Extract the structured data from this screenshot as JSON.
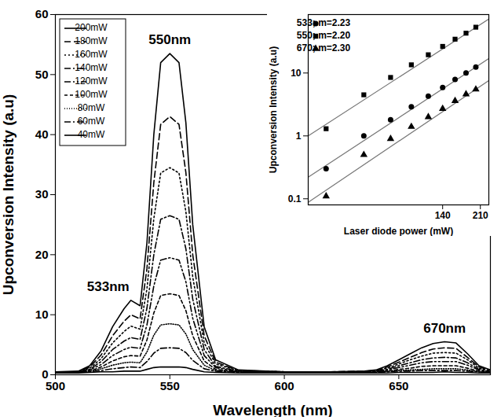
{
  "chart_data": [
    {
      "type": "line",
      "x_label": "Wavelength (nm)",
      "y_label": "Upconversion Intensity (a.u)",
      "x": [
        500,
        510,
        515,
        520,
        525,
        530,
        533,
        537,
        540,
        543,
        546,
        550,
        554,
        557,
        560,
        565,
        570,
        580,
        600,
        620,
        635,
        640,
        645,
        650,
        655,
        660,
        665,
        670,
        675,
        680,
        685,
        690
      ],
      "series": [
        {
          "name": "200mW",
          "color": "#000000",
          "line_style": "solid",
          "values": [
            0.5,
            0.6,
            1.5,
            4,
            8,
            11,
            12.4,
            11.5,
            22,
            40,
            52,
            53.5,
            52,
            42,
            25,
            8,
            2.5,
            0.8,
            0.5,
            0.5,
            0.6,
            0.8,
            1.5,
            2.5,
            3.5,
            4.5,
            5.2,
            5.5,
            5.3,
            3.5,
            1.5,
            0.8
          ]
        },
        {
          "name": "180mW",
          "color": "#000000",
          "line_style": "dashed",
          "values": [
            0.5,
            0.5,
            1.3,
            3.3,
            6.5,
            8.9,
            10,
            9.3,
            17.7,
            32,
            41.7,
            43,
            41.7,
            33.7,
            20,
            6.5,
            2.1,
            0.7,
            0.5,
            0.5,
            0.6,
            0.7,
            1.3,
            2.1,
            2.9,
            3.7,
            4.3,
            4.5,
            4.4,
            2.9,
            1.3,
            0.7
          ]
        },
        {
          "name": "160mW",
          "color": "#000000",
          "line_style": "dotted",
          "values": [
            0.5,
            0.5,
            1.1,
            2.7,
            5.3,
            7.2,
            8.1,
            7.6,
            14.3,
            26,
            33.6,
            34.5,
            33.6,
            27.2,
            16.3,
            5.3,
            1.8,
            0.7,
            0.5,
            0.5,
            0.5,
            0.7,
            1.1,
            1.8,
            2.5,
            3.1,
            3.6,
            3.7,
            3.6,
            2.5,
            1.1,
            0.6
          ]
        },
        {
          "name": "140mW",
          "color": "#000000",
          "line_style": "dashdot",
          "values": [
            0.4,
            0.5,
            0.9,
            2.2,
            4.2,
            5.6,
            6.2,
            5.9,
            11.1,
            20,
            25.9,
            26.5,
            25.9,
            21,
            12.6,
            4.2,
            1.4,
            0.6,
            0.4,
            0.4,
            0.5,
            0.6,
            0.9,
            1.5,
            2,
            2.5,
            2.8,
            2.9,
            2.8,
            2,
            0.9,
            0.5
          ]
        },
        {
          "name": "120mW",
          "color": "#000000",
          "line_style": "dashdotdot",
          "values": [
            0.4,
            0.4,
            0.8,
            1.7,
            3.2,
            4.2,
            4.6,
            4.4,
            8.3,
            14.8,
            19.1,
            19.5,
            19.1,
            15.5,
            9.4,
            3.2,
            1.2,
            0.5,
            0.4,
            0.4,
            0.4,
            0.5,
            0.8,
            1.2,
            1.6,
            2,
            2.2,
            2.2,
            2.2,
            1.6,
            0.8,
            0.5
          ]
        },
        {
          "name": "100mW",
          "color": "#000000",
          "line_style": "shortdash",
          "values": [
            0.4,
            0.4,
            0.6,
            1.3,
            2.3,
            3,
            3.2,
            3.1,
            5.8,
            10.3,
            13.2,
            13.5,
            13.2,
            10.7,
            6.5,
            2.3,
            0.9,
            0.5,
            0.4,
            0.4,
            0.4,
            0.5,
            0.6,
            0.9,
            1.1,
            1.4,
            1.5,
            1.5,
            1.5,
            1.1,
            0.6,
            0.4
          ]
        },
        {
          "name": "80mW",
          "color": "#000000",
          "line_style": "shortdot",
          "values": [
            0.4,
            0.4,
            0.6,
            1,
            1.6,
            2,
            2.1,
            2,
            3.8,
            6.6,
            8.3,
            8.5,
            8.3,
            6.8,
            4.2,
            1.6,
            0.7,
            0.5,
            0.4,
            0.4,
            0.4,
            0.5,
            0.6,
            0.7,
            0.8,
            0.9,
            1,
            1,
            1,
            0.8,
            0.5,
            0.4
          ]
        },
        {
          "name": "60mW",
          "color": "#000000",
          "line_style": "dashdot",
          "values": [
            0.4,
            0.4,
            0.5,
            0.7,
            1,
            1.2,
            1.3,
            1.2,
            2.2,
            3.6,
            4.4,
            4.5,
            4.4,
            3.7,
            2.4,
            1,
            0.6,
            0.4,
            0.4,
            0.4,
            0.4,
            0.4,
            0.5,
            0.6,
            0.6,
            0.7,
            0.7,
            0.7,
            0.7,
            0.6,
            0.5,
            0.4
          ]
        },
        {
          "name": "40mW",
          "color": "#000000",
          "line_style": "solid",
          "values": [
            0.3,
            0.3,
            0.4,
            0.5,
            0.5,
            0.6,
            0.6,
            0.6,
            0.9,
            1.2,
            1.3,
            1.3,
            1.3,
            1.2,
            0.9,
            0.5,
            0.4,
            0.3,
            0.3,
            0.3,
            0.3,
            0.3,
            0.3,
            0.4,
            0.4,
            0.4,
            0.4,
            0.5,
            0.4,
            0.4,
            0.3,
            0.3
          ]
        }
      ],
      "annotations": [
        {
          "text": "550nm",
          "x": 550
        },
        {
          "text": "533nm",
          "x": 533
        },
        {
          "text": "670nm",
          "x": 670
        }
      ],
      "xlim": [
        500,
        690
      ],
      "xticks": [
        500,
        550,
        600,
        650
      ],
      "ylim": [
        0,
        60
      ],
      "yticks": [
        0,
        10,
        20,
        30,
        40,
        50,
        60
      ],
      "legend": "top-left"
    },
    {
      "type": "scatter",
      "x_label": "Laser diode power (mW)",
      "y_label": "Upconversion Intensity (a.u)",
      "log": true,
      "x": [
        40,
        60,
        80,
        100,
        120,
        140,
        160,
        180,
        200
      ],
      "series": [
        {
          "name": "533; m=2.23",
          "color": "#000000",
          "marker": "circle",
          "values": [
            0.3,
            1.0,
            1.8,
            2.9,
            4.3,
            5.9,
            7.9,
            10,
            12.4
          ],
          "fit": {
            "x": [
              33,
              230
            ],
            "values": [
              0.22,
              17
            ]
          }
        },
        {
          "name": "550; m=2.20",
          "color": "#000000",
          "marker": "square",
          "values": [
            1.3,
            4.5,
            8.5,
            13.5,
            19.5,
            26.5,
            34.5,
            43,
            53.5
          ],
          "fit": {
            "x": [
              33,
              230
            ],
            "values": [
              1.0,
              72
            ]
          }
        },
        {
          "name": "670; m=2.30",
          "color": "#000000",
          "marker": "triangle",
          "values": [
            0.11,
            0.5,
            0.9,
            1.4,
            2.0,
            2.7,
            3.6,
            4.6,
            5.5
          ],
          "fit": {
            "x": [
              33,
              230
            ],
            "values": [
              0.088,
              7.6
            ]
          }
        }
      ],
      "xlim": [
        33,
        230
      ],
      "xticks": [
        140,
        210
      ],
      "ylim": [
        0.08,
        85
      ],
      "yticks": [
        0.1,
        1,
        10
      ],
      "legend": "top-left"
    }
  ]
}
